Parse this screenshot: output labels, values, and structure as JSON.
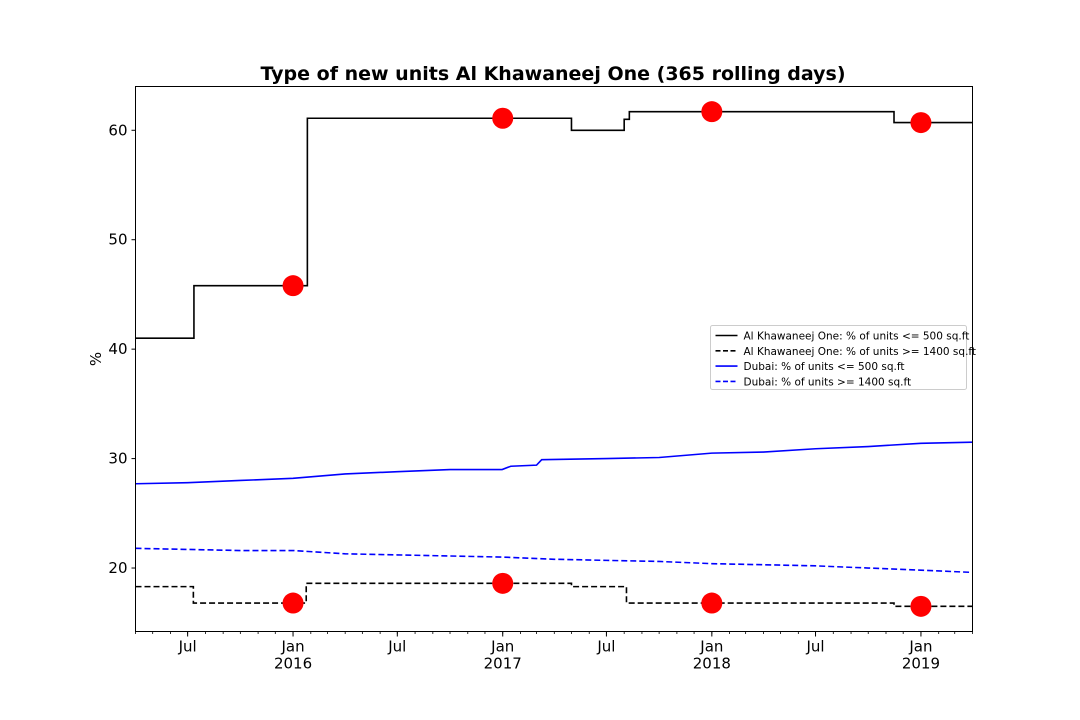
{
  "chart_data": {
    "type": "line",
    "title": "Type of new units Al Khawaneej One (365 rolling days)",
    "xlabel": "",
    "ylabel": "%",
    "x_range": [
      "2015-04-01",
      "2019-04-01"
    ],
    "ylim": [
      14.2,
      64.0
    ],
    "y_ticks": [
      20,
      30,
      40,
      50,
      60
    ],
    "x_ticks": [
      {
        "date": "2015-07-01",
        "label": "Jul",
        "sublabel": ""
      },
      {
        "date": "2016-01-01",
        "label": "Jan",
        "sublabel": "2016"
      },
      {
        "date": "2016-07-01",
        "label": "Jul",
        "sublabel": ""
      },
      {
        "date": "2017-01-01",
        "label": "Jan",
        "sublabel": "2017"
      },
      {
        "date": "2017-07-01",
        "label": "Jul",
        "sublabel": ""
      },
      {
        "date": "2018-01-01",
        "label": "Jan",
        "sublabel": "2018"
      },
      {
        "date": "2018-07-01",
        "label": "Jul",
        "sublabel": ""
      },
      {
        "date": "2019-01-01",
        "label": "Jan",
        "sublabel": "2019"
      }
    ],
    "grid": false,
    "legend_position": "center-right",
    "series": [
      {
        "name": "Al Khawaneej One: % of units <= 500 sq.ft",
        "color": "#000000",
        "dash": "solid",
        "step": true,
        "points": [
          [
            "2015-04-01",
            41.0
          ],
          [
            "2015-07-12",
            41.0
          ],
          [
            "2015-07-12",
            45.8
          ],
          [
            "2016-01-26",
            45.8
          ],
          [
            "2016-01-26",
            61.1
          ],
          [
            "2017-05-01",
            61.1
          ],
          [
            "2017-05-01",
            60.0
          ],
          [
            "2017-08-01",
            60.0
          ],
          [
            "2017-08-01",
            61.0
          ],
          [
            "2017-08-10",
            61.0
          ],
          [
            "2017-08-10",
            61.7
          ],
          [
            "2018-11-15",
            61.7
          ],
          [
            "2018-11-15",
            60.7
          ],
          [
            "2019-04-01",
            60.7
          ]
        ]
      },
      {
        "name": "Al Khawaneej One: % of units >= 1400 sq.ft",
        "color": "#000000",
        "dash": "dashed",
        "step": true,
        "points": [
          [
            "2015-04-01",
            18.3
          ],
          [
            "2015-07-11",
            18.3
          ],
          [
            "2015-07-11",
            16.8
          ],
          [
            "2016-01-24",
            16.8
          ],
          [
            "2016-01-24",
            18.6
          ],
          [
            "2017-05-01",
            18.6
          ],
          [
            "2017-05-01",
            18.3
          ],
          [
            "2017-08-05",
            18.3
          ],
          [
            "2017-08-05",
            16.8
          ],
          [
            "2018-11-15",
            16.8
          ],
          [
            "2018-11-15",
            16.5
          ],
          [
            "2019-04-01",
            16.5
          ]
        ]
      },
      {
        "name": "Dubai: % of units <= 500 sq.ft",
        "color": "#0000ff",
        "dash": "solid",
        "step": false,
        "points": [
          [
            "2015-04-01",
            27.7
          ],
          [
            "2015-07-01",
            27.8
          ],
          [
            "2015-10-01",
            28.0
          ],
          [
            "2016-01-01",
            28.2
          ],
          [
            "2016-04-01",
            28.6
          ],
          [
            "2016-07-01",
            28.8
          ],
          [
            "2016-10-01",
            29.0
          ],
          [
            "2016-12-31",
            29.0
          ],
          [
            "2017-01-15",
            29.3
          ],
          [
            "2017-03-01",
            29.4
          ],
          [
            "2017-03-10",
            29.9
          ],
          [
            "2017-07-01",
            30.0
          ],
          [
            "2017-10-01",
            30.1
          ],
          [
            "2018-01-01",
            30.5
          ],
          [
            "2018-04-01",
            30.6
          ],
          [
            "2018-07-01",
            30.9
          ],
          [
            "2018-10-01",
            31.1
          ],
          [
            "2019-01-01",
            31.4
          ],
          [
            "2019-04-01",
            31.5
          ]
        ]
      },
      {
        "name": "Dubai: % of units >= 1400 sq.ft",
        "color": "#0000ff",
        "dash": "dashed",
        "step": false,
        "points": [
          [
            "2015-04-01",
            21.8
          ],
          [
            "2015-07-01",
            21.7
          ],
          [
            "2015-10-01",
            21.6
          ],
          [
            "2016-01-01",
            21.6
          ],
          [
            "2016-04-01",
            21.3
          ],
          [
            "2016-07-01",
            21.2
          ],
          [
            "2016-10-01",
            21.1
          ],
          [
            "2017-01-01",
            21.0
          ],
          [
            "2017-04-01",
            20.8
          ],
          [
            "2017-07-01",
            20.7
          ],
          [
            "2017-10-01",
            20.6
          ],
          [
            "2018-01-01",
            20.4
          ],
          [
            "2018-04-01",
            20.3
          ],
          [
            "2018-07-01",
            20.2
          ],
          [
            "2018-10-01",
            20.0
          ],
          [
            "2019-01-01",
            19.8
          ],
          [
            "2019-04-01",
            19.6
          ]
        ]
      }
    ],
    "markers": {
      "color": "#ff0000",
      "points": [
        [
          "2016-01-01",
          45.8
        ],
        [
          "2017-01-01",
          61.1
        ],
        [
          "2018-01-01",
          61.7
        ],
        [
          "2019-01-01",
          60.7
        ],
        [
          "2016-01-01",
          16.8
        ],
        [
          "2017-01-01",
          18.6
        ],
        [
          "2018-01-01",
          16.8
        ],
        [
          "2019-01-01",
          16.5
        ]
      ]
    }
  }
}
